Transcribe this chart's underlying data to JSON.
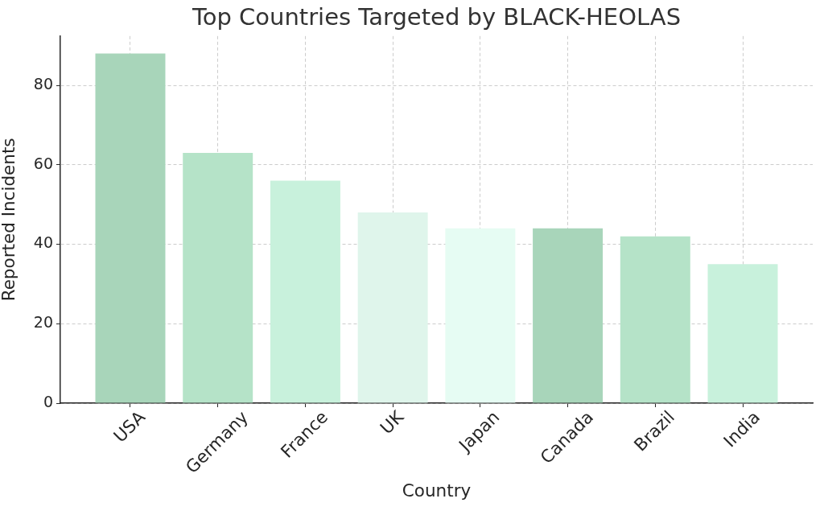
{
  "chart_data": {
    "type": "bar",
    "title": "Top Countries Targeted by BLACK-HEOLAS",
    "xlabel": "Country",
    "ylabel": "Reported Incidents",
    "categories": [
      "USA",
      "Germany",
      "France",
      "UK",
      "Japan",
      "Canada",
      "Brazil",
      "India"
    ],
    "values": [
      88,
      63,
      56,
      48,
      44,
      44,
      42,
      35
    ],
    "colors": [
      "#a8d5ba",
      "#b5e3c8",
      "#c8f1dc",
      "#dff5eb",
      "#e6fcf3",
      "#a8d5ba",
      "#b5e3c8",
      "#c8f1dc"
    ],
    "ylim": [
      0,
      92.4
    ],
    "yticks": [
      0,
      20,
      40,
      60,
      80
    ],
    "grid": true
  }
}
